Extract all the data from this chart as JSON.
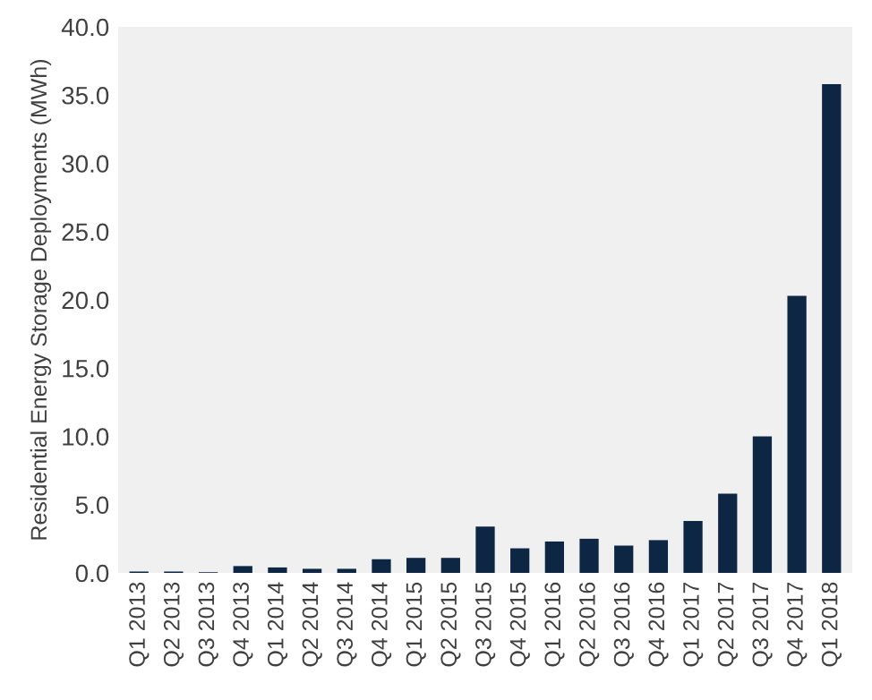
{
  "chart_data": {
    "type": "bar",
    "ylabel": "Residential Energy Storage Deployments (MWh)",
    "categories": [
      "Q1 2013",
      "Q2 2013",
      "Q3 2013",
      "Q4 2013",
      "Q1 2014",
      "Q2 2014",
      "Q3 2014",
      "Q4 2014",
      "Q1 2015",
      "Q2 2015",
      "Q3 2015",
      "Q4 2015",
      "Q1 2016",
      "Q2 2016",
      "Q3 2016",
      "Q4 2016",
      "Q1 2017",
      "Q2 2017",
      "Q3 2017",
      "Q4 2017",
      "Q1 2018"
    ],
    "values": [
      0.1,
      0.1,
      0.05,
      0.5,
      0.4,
      0.3,
      0.3,
      1.0,
      1.1,
      1.1,
      3.4,
      1.8,
      2.3,
      2.5,
      2.0,
      2.4,
      3.8,
      5.8,
      10.0,
      20.3,
      35.8
    ],
    "color": "#0d2644",
    "ylim": [
      0,
      40
    ],
    "yticks": [
      {
        "value": 0,
        "label": "0.0"
      },
      {
        "value": 5,
        "label": "5.0"
      },
      {
        "value": 10,
        "label": "10.0"
      },
      {
        "value": 15,
        "label": "15.0"
      },
      {
        "value": 20,
        "label": "20.0"
      },
      {
        "value": 25,
        "label": "25.0"
      },
      {
        "value": 30,
        "label": "30.0"
      },
      {
        "value": 35,
        "label": "35.0"
      },
      {
        "value": 40,
        "label": "40.0"
      }
    ],
    "grid": false
  }
}
